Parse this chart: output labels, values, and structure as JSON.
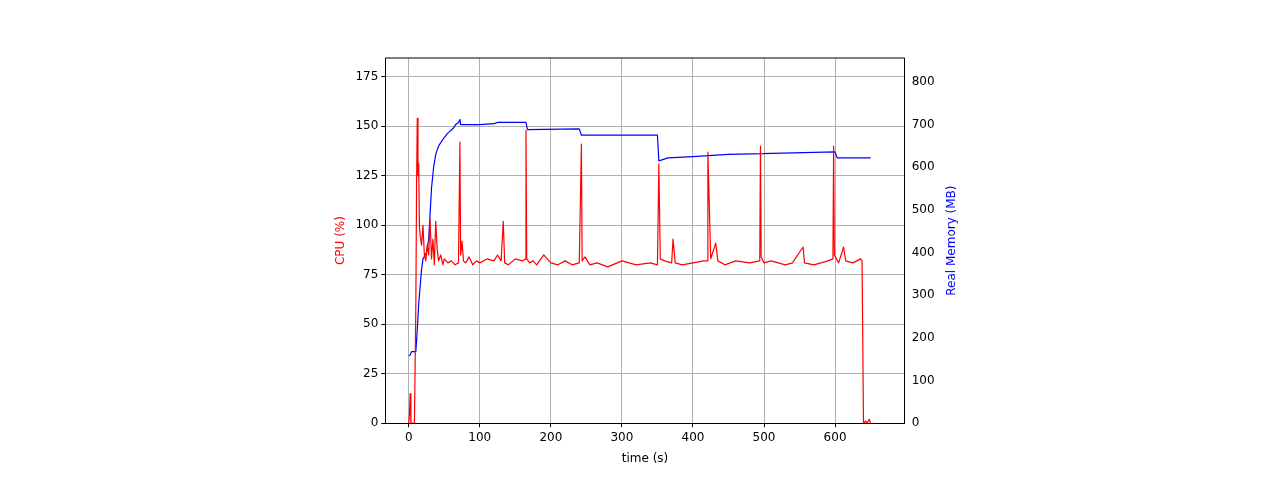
{
  "chart_data": {
    "type": "line",
    "xlabel": "time (s)",
    "ylabel": "CPU (%)",
    "y2label": "Real Memory (MB)",
    "xlim": [
      -33,
      698
    ],
    "xticks": [
      0,
      100,
      200,
      300,
      400,
      500,
      600
    ],
    "ylim": [
      0,
      184.5
    ],
    "yticks": [
      0,
      25,
      50,
      75,
      100,
      125,
      150,
      175
    ],
    "y2lim": [
      0,
      856
    ],
    "y2ticks": [
      0,
      100,
      200,
      300,
      400,
      500,
      600,
      700,
      800
    ],
    "grid": true,
    "legend": false,
    "marker": "none",
    "line_style": "solid",
    "series": [
      {
        "name": null,
        "color": "#ff0000",
        "axis": "y",
        "x": [
          0,
          1,
          2,
          3,
          5,
          8,
          10,
          11,
          12,
          13,
          14,
          15,
          16,
          18,
          20,
          22,
          24,
          26,
          28,
          30,
          32,
          34,
          36,
          38,
          40,
          42,
          45,
          48,
          50,
          55,
          60,
          65,
          70,
          72,
          73,
          75,
          77,
          80,
          85,
          90,
          95,
          100,
          110,
          120,
          125,
          130,
          133,
          135,
          140,
          150,
          160,
          164,
          165,
          166,
          170,
          175,
          180,
          190,
          200,
          210,
          220,
          230,
          240,
          243,
          244,
          248,
          255,
          265,
          280,
          300,
          320,
          340,
          350,
          352,
          354,
          360,
          370,
          372,
          375,
          385,
          400,
          415,
          420,
          421,
          425,
          432,
          435,
          445,
          460,
          480,
          494,
          495,
          496,
          500,
          510,
          530,
          540,
          555,
          557,
          570,
          590,
          597,
          598,
          599,
          605,
          612,
          615,
          625,
          636,
          638,
          640,
          643,
          645,
          648,
          650
        ],
        "values": [
          0,
          5,
          15,
          0,
          0,
          0,
          60,
          120,
          154,
          125,
          131,
          100,
          95,
          90,
          100,
          85,
          82,
          90,
          85,
          103,
          83,
          93,
          80,
          102,
          88,
          82,
          85,
          80,
          83,
          81,
          82,
          80,
          81,
          142,
          85,
          92,
          82,
          81,
          84,
          80,
          82,
          81,
          83,
          82,
          85,
          82,
          102,
          81,
          80,
          83,
          82,
          83,
          148,
          83,
          81,
          82,
          80,
          85,
          81,
          80,
          82,
          80,
          81,
          141,
          82,
          84,
          80,
          81,
          79,
          82,
          80,
          81,
          80,
          131,
          83,
          82,
          81,
          93,
          81,
          80,
          81,
          82,
          82,
          137,
          83,
          91,
          82,
          80,
          82,
          81,
          82,
          140,
          84,
          81,
          82,
          80,
          81,
          89,
          81,
          80,
          82,
          83,
          140,
          85,
          81,
          89,
          82,
          81,
          83,
          82,
          0,
          1,
          0,
          2,
          0
        ]
      },
      {
        "name": null,
        "color": "#0000ff",
        "axis": "y2",
        "x": [
          0,
          2,
          4,
          10,
          12,
          14,
          16,
          18,
          20,
          25,
          28,
          30,
          32,
          35,
          38,
          42,
          48,
          55,
          62,
          66,
          70,
          72,
          73,
          100,
          120,
          125,
          165,
          167,
          240,
          243,
          350,
          352,
          365,
          400,
          450,
          600,
          603,
          650
        ],
        "values": [
          158,
          160,
          168,
          168,
          220,
          280,
          320,
          360,
          385,
          400,
          430,
          490,
          550,
          600,
          630,
          650,
          665,
          680,
          690,
          700,
          705,
          712,
          700,
          700,
          702,
          705,
          705,
          688,
          690,
          675,
          675,
          615,
          622,
          625,
          630,
          636,
          622,
          622
        ]
      }
    ]
  }
}
